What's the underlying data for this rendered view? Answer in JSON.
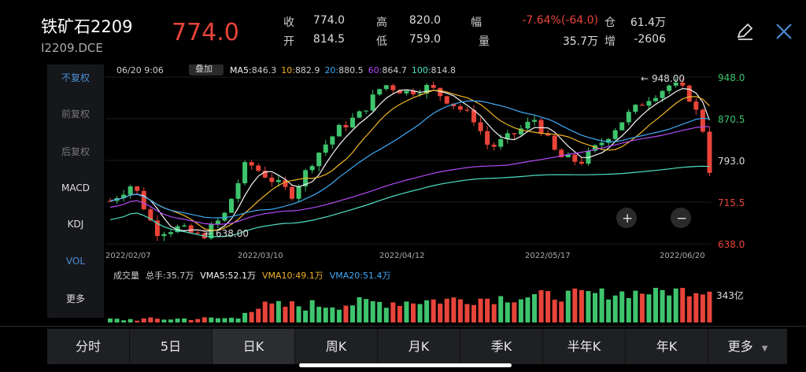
{
  "header": {
    "symbol": "铁矿石2209",
    "code": "I2209.DCE",
    "price": "774.0",
    "stats": [
      {
        "label": "收",
        "value": "774.0"
      },
      {
        "label": "开",
        "value": "814.5"
      },
      {
        "label": "高",
        "value": "820.0"
      },
      {
        "label": "低",
        "value": "759.0"
      },
      {
        "label": "幅",
        "value": "-7.64%(-64.0)"
      },
      {
        "label": "量",
        "value": "35.7万"
      },
      {
        "label": "仓",
        "value": "61.4万"
      },
      {
        "label": "增",
        "value": "-2606"
      }
    ],
    "edit_icon": "pencil-icon",
    "close_icon": "close-icon"
  },
  "sidebar": {
    "items": [
      {
        "label": "不复权",
        "active": true
      },
      {
        "label": "前复权",
        "active": false
      },
      {
        "label": "后复权",
        "active": false
      },
      {
        "label": "MACD",
        "active": false
      },
      {
        "label": "KDJ",
        "active": false
      },
      {
        "label": "VOL",
        "active": true
      },
      {
        "label": "更多",
        "active": false
      }
    ]
  },
  "chart_info": {
    "datetime": "06/20 9:06",
    "overlay_label": "叠加",
    "ma": [
      {
        "label": "MA5:",
        "value": "846.3",
        "color": "#f5f5f5"
      },
      {
        "label": "10:",
        "value": "882.9",
        "color": "#f0b429"
      },
      {
        "label": "20:",
        "value": "880.5",
        "color": "#3fa9f5"
      },
      {
        "label": "60:",
        "value": "864.7",
        "color": "#b14bf4"
      },
      {
        "label": "100:",
        "value": "814.8",
        "color": "#4fe0c4"
      }
    ],
    "high_marker": "948.00",
    "low_marker": "638.00",
    "marker_arrow": "←",
    "zoom_in": "+",
    "zoom_out": "−",
    "vol_info": [
      {
        "label": "成交量",
        "value": "",
        "color": "#ccc"
      },
      {
        "label": "总手:",
        "value": "35.7万",
        "color": "#ccc"
      },
      {
        "label": "VMA5:",
        "value": "52.1万",
        "color": "#f5f5f5"
      },
      {
        "label": "VMA10:",
        "value": "49.1万",
        "color": "#f0b429"
      },
      {
        "label": "VMA20:",
        "value": "51.4万",
        "color": "#3fa9f5"
      }
    ],
    "vol_axis": "343亿"
  },
  "chart_data": {
    "type": "candlestick",
    "ylim": [
      638,
      948
    ],
    "y_ticks": [
      {
        "label": "948.0",
        "value": 948,
        "color": "#3ec46d"
      },
      {
        "label": "870.5",
        "value": 870.5,
        "color": "#3ec46d"
      },
      {
        "label": "793.0",
        "value": 793,
        "color": "#dddddd"
      },
      {
        "label": "715.5",
        "value": 715.5,
        "color": "#e8443a"
      },
      {
        "label": "638.0",
        "value": 638,
        "color": "#e8443a"
      }
    ],
    "x_ticks": [
      "2022/02/07",
      "2022/03/10",
      "2022/04/12",
      "2022/05/17",
      "2022/06/20"
    ],
    "up_color": "#3ec46d",
    "down_color": "#e8443a"
  },
  "tabs": [
    {
      "label": "分时",
      "active": false
    },
    {
      "label": "5日",
      "active": false
    },
    {
      "label": "日K",
      "active": true
    },
    {
      "label": "周K",
      "active": false
    },
    {
      "label": "月K",
      "active": false
    },
    {
      "label": "季K",
      "active": false
    },
    {
      "label": "半年K",
      "active": false
    },
    {
      "label": "年K",
      "active": false
    },
    {
      "label": "更多",
      "active": false
    }
  ]
}
